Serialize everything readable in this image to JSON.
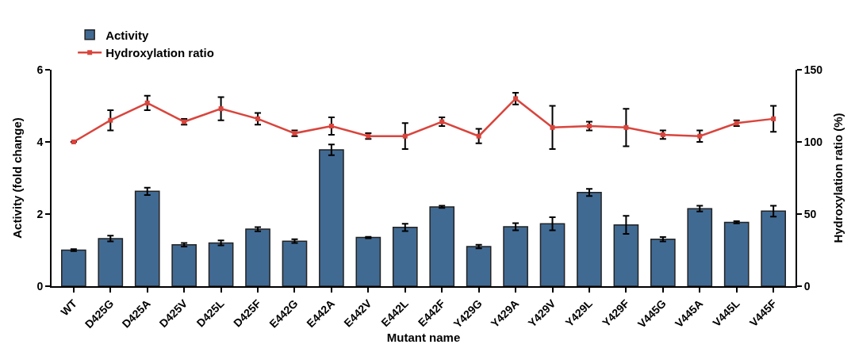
{
  "chart_data": {
    "type": "bar",
    "xlabel": "Mutant name",
    "ylabel": "Activity (fold change)",
    "y2label": "Hydroxylation ratio (%)",
    "categories": [
      "WT",
      "D425G",
      "D425A",
      "D425V",
      "D425L",
      "D425F",
      "E442G",
      "E442A",
      "E442V",
      "E442L",
      "E442F",
      "Y429G",
      "Y429A",
      "Y429V",
      "Y429L",
      "Y429F",
      "V445G",
      "V445A",
      "V445L",
      "V445F"
    ],
    "series": [
      {
        "name": "Activity",
        "color": "#416a93",
        "values": [
          1.0,
          1.32,
          2.63,
          1.15,
          1.2,
          1.58,
          1.25,
          3.78,
          1.35,
          1.63,
          2.2,
          1.1,
          1.65,
          1.73,
          2.6,
          1.7,
          1.3,
          2.15,
          1.77,
          2.08
        ],
        "errors": [
          0.03,
          0.08,
          0.1,
          0.05,
          0.07,
          0.06,
          0.05,
          0.15,
          0.02,
          0.1,
          0.03,
          0.05,
          0.1,
          0.18,
          0.1,
          0.25,
          0.06,
          0.08,
          0.03,
          0.15
        ]
      },
      {
        "name": "Hydroxylation ratio",
        "type": "line",
        "axis": "y2",
        "color": "#d9453d",
        "marker": "square",
        "values": [
          100,
          115,
          127,
          114,
          123,
          116,
          106,
          111,
          104,
          104,
          114,
          104,
          130,
          110,
          111,
          110,
          105,
          104,
          113,
          116
        ],
        "errors": [
          0,
          7,
          5,
          2,
          8,
          4,
          2,
          6,
          2,
          9,
          3,
          5,
          4,
          15,
          3,
          13,
          3,
          4,
          2,
          9
        ]
      }
    ],
    "ylim": [
      0,
      6
    ],
    "yticks": [
      0,
      2,
      4,
      6
    ],
    "y2lim": [
      0,
      150
    ],
    "y2ticks": [
      0,
      50,
      100,
      150
    ],
    "legend": "top left"
  }
}
